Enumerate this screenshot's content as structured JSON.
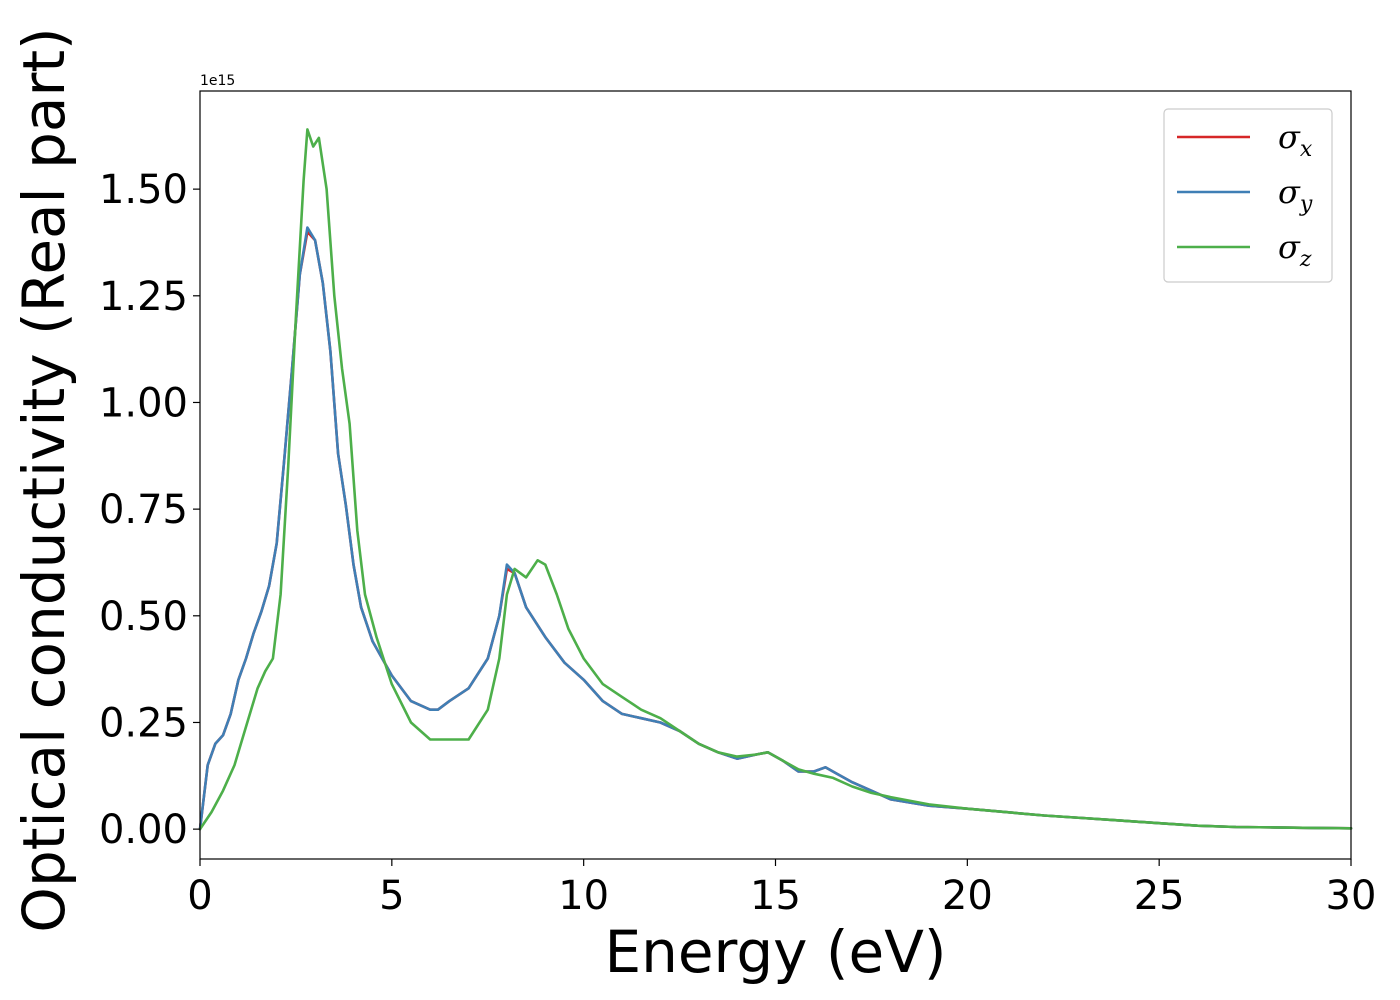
{
  "chart_data": {
    "type": "line",
    "xlabel": "Energy (eV)",
    "ylabel": "Optical conductivity (Real part)",
    "y_offset_label": "1e15",
    "y_scale_factor": 1000000000000000.0,
    "xlim": [
      0,
      30
    ],
    "ylim": [
      -0.07,
      1.73
    ],
    "x_ticks": [
      0,
      5,
      10,
      15,
      20,
      25,
      30
    ],
    "y_ticks": [
      0.0,
      0.25,
      0.5,
      0.75,
      1.0,
      1.25,
      1.5
    ],
    "x_tick_labels": [
      "0",
      "5",
      "10",
      "15",
      "20",
      "25",
      "30"
    ],
    "y_tick_labels": [
      "0.00",
      "0.25",
      "0.50",
      "0.75",
      "1.00",
      "1.25",
      "1.50"
    ],
    "grid": false,
    "legend_position": "top-right",
    "legend": [
      {
        "symbol": "σ",
        "subscript": "x",
        "color": "#d62728"
      },
      {
        "symbol": "σ",
        "subscript": "y",
        "color": "#3f7fb5"
      },
      {
        "symbol": "σ",
        "subscript": "z",
        "color": "#4daf4a"
      }
    ],
    "series": [
      {
        "color": "#d62728",
        "x": [
          0,
          0.2,
          0.4,
          0.6,
          0.8,
          1.0,
          1.2,
          1.4,
          1.6,
          1.8,
          2.0,
          2.2,
          2.4,
          2.6,
          2.8,
          3.0,
          3.2,
          3.4,
          3.6,
          3.8,
          4.0,
          4.2,
          4.5,
          5.0,
          5.5,
          6.0,
          6.2,
          6.5,
          7.0,
          7.5,
          7.8,
          8.0,
          8.2,
          8.5,
          9.0,
          9.5,
          10.0,
          10.5,
          11.0,
          11.5,
          12.0,
          12.5,
          13.0,
          13.5,
          14.0,
          14.5,
          14.8,
          15.2,
          15.6,
          16.0,
          16.3,
          16.6,
          17.0,
          17.5,
          18.0,
          19.0,
          20.0,
          21.0,
          22.0,
          23.0,
          24.0,
          25.0,
          26.0,
          27.0,
          28.0,
          29.0,
          30.0
        ],
        "values": [
          0.0,
          0.15,
          0.2,
          0.22,
          0.27,
          0.35,
          0.4,
          0.46,
          0.51,
          0.57,
          0.67,
          0.87,
          1.08,
          1.3,
          1.4,
          1.38,
          1.28,
          1.12,
          0.88,
          0.76,
          0.62,
          0.52,
          0.44,
          0.36,
          0.3,
          0.28,
          0.28,
          0.3,
          0.33,
          0.4,
          0.5,
          0.61,
          0.6,
          0.52,
          0.45,
          0.39,
          0.35,
          0.3,
          0.27,
          0.26,
          0.25,
          0.23,
          0.2,
          0.18,
          0.165,
          0.175,
          0.18,
          0.16,
          0.135,
          0.135,
          0.145,
          0.13,
          0.11,
          0.09,
          0.07,
          0.055,
          0.048,
          0.04,
          0.032,
          0.026,
          0.02,
          0.014,
          0.008,
          0.005,
          0.004,
          0.003,
          0.002
        ]
      },
      {
        "color": "#3f7fb5",
        "x": [
          0,
          0.2,
          0.4,
          0.6,
          0.8,
          1.0,
          1.2,
          1.4,
          1.6,
          1.8,
          2.0,
          2.2,
          2.4,
          2.6,
          2.8,
          3.0,
          3.2,
          3.4,
          3.6,
          3.8,
          4.0,
          4.2,
          4.5,
          5.0,
          5.5,
          6.0,
          6.2,
          6.5,
          7.0,
          7.5,
          7.8,
          8.0,
          8.2,
          8.5,
          9.0,
          9.5,
          10.0,
          10.5,
          11.0,
          11.5,
          12.0,
          12.5,
          13.0,
          13.5,
          14.0,
          14.5,
          14.8,
          15.2,
          15.6,
          16.0,
          16.3,
          16.6,
          17.0,
          17.5,
          18.0,
          19.0,
          20.0,
          21.0,
          22.0,
          23.0,
          24.0,
          25.0,
          26.0,
          27.0,
          28.0,
          29.0,
          30.0
        ],
        "values": [
          0.0,
          0.15,
          0.2,
          0.22,
          0.27,
          0.35,
          0.4,
          0.46,
          0.51,
          0.57,
          0.67,
          0.87,
          1.08,
          1.3,
          1.41,
          1.38,
          1.28,
          1.12,
          0.88,
          0.76,
          0.62,
          0.52,
          0.44,
          0.36,
          0.3,
          0.28,
          0.28,
          0.3,
          0.33,
          0.4,
          0.5,
          0.62,
          0.6,
          0.52,
          0.45,
          0.39,
          0.35,
          0.3,
          0.27,
          0.26,
          0.25,
          0.23,
          0.2,
          0.18,
          0.165,
          0.175,
          0.18,
          0.16,
          0.135,
          0.135,
          0.145,
          0.13,
          0.11,
          0.09,
          0.07,
          0.055,
          0.048,
          0.04,
          0.032,
          0.026,
          0.02,
          0.014,
          0.008,
          0.005,
          0.004,
          0.003,
          0.002
        ]
      },
      {
        "color": "#4daf4a",
        "x": [
          0,
          0.3,
          0.6,
          0.9,
          1.2,
          1.5,
          1.7,
          1.9,
          2.1,
          2.3,
          2.5,
          2.7,
          2.8,
          2.95,
          3.1,
          3.3,
          3.5,
          3.7,
          3.9,
          4.1,
          4.3,
          4.6,
          5.0,
          5.5,
          6.0,
          6.5,
          7.0,
          7.5,
          7.8,
          8.0,
          8.2,
          8.5,
          8.8,
          9.0,
          9.3,
          9.6,
          10.0,
          10.5,
          11.0,
          11.5,
          12.0,
          12.5,
          13.0,
          13.5,
          14.0,
          14.5,
          14.8,
          15.2,
          15.6,
          16.0,
          16.5,
          17.0,
          17.5,
          18.0,
          19.0,
          20.0,
          21.0,
          22.0,
          23.0,
          24.0,
          25.0,
          26.0,
          27.0,
          28.0,
          29.0,
          30.0
        ],
        "values": [
          0.0,
          0.04,
          0.09,
          0.15,
          0.24,
          0.33,
          0.37,
          0.4,
          0.55,
          0.85,
          1.2,
          1.52,
          1.64,
          1.6,
          1.62,
          1.5,
          1.25,
          1.08,
          0.95,
          0.7,
          0.55,
          0.45,
          0.34,
          0.25,
          0.21,
          0.21,
          0.21,
          0.28,
          0.4,
          0.55,
          0.61,
          0.59,
          0.63,
          0.62,
          0.55,
          0.47,
          0.4,
          0.34,
          0.31,
          0.28,
          0.26,
          0.23,
          0.2,
          0.18,
          0.17,
          0.175,
          0.18,
          0.16,
          0.14,
          0.13,
          0.12,
          0.1,
          0.085,
          0.075,
          0.058,
          0.048,
          0.04,
          0.032,
          0.026,
          0.02,
          0.014,
          0.008,
          0.005,
          0.004,
          0.003,
          0.002
        ]
      }
    ]
  }
}
